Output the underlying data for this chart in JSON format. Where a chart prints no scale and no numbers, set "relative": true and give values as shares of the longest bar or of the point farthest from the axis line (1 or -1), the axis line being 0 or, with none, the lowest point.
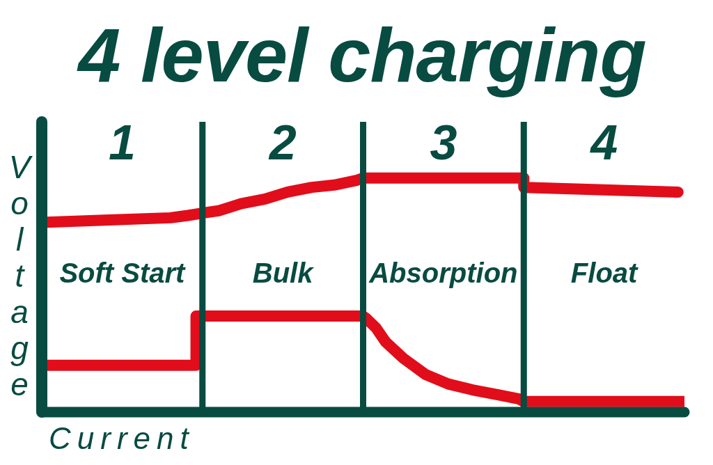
{
  "chart_data": {
    "type": "line",
    "title": "4 level charging",
    "xlabel": "Current",
    "ylabel": "Voltage",
    "relative": true,
    "xlim": [
      0.5,
      4.5
    ],
    "xticks": [
      1,
      2,
      3,
      4
    ],
    "series": [
      {
        "color": "#e20d1a",
        "x": [
          0.5,
          0.89,
          1.3,
          1.41,
          1.5,
          1.6,
          1.74,
          1.89,
          2.03,
          2.18,
          2.32,
          2.46,
          2.5,
          3.5,
          3.5,
          4.46
        ],
        "values": [
          0.81,
          0.82,
          0.83,
          0.84,
          0.85,
          0.86,
          0.89,
          0.91,
          0.94,
          0.96,
          0.97,
          0.99,
          1.0,
          1.0,
          0.96,
          0.94
        ]
      },
      {
        "color": "#e20d1a",
        "x": [
          0.5,
          1.46,
          1.46,
          2.5,
          2.52,
          2.58,
          2.64,
          2.75,
          2.89,
          3.03,
          3.18,
          3.34,
          3.47,
          3.5,
          4.5
        ],
        "values": [
          0.2,
          0.2,
          0.41,
          0.41,
          0.4,
          0.36,
          0.3,
          0.23,
          0.16,
          0.12,
          0.095,
          0.074,
          0.056,
          0.045,
          0.045
        ]
      }
    ],
    "ref_lines": [
      {
        "axis": "x",
        "value": 1.5,
        "color": "#084b41"
      },
      {
        "axis": "x",
        "value": 2.5,
        "color": "#084b41"
      },
      {
        "axis": "x",
        "value": 3.5,
        "color": "#084b41"
      }
    ],
    "annotations": [
      "Soft Start",
      "Bulk",
      "Absorption",
      "Float"
    ]
  }
}
